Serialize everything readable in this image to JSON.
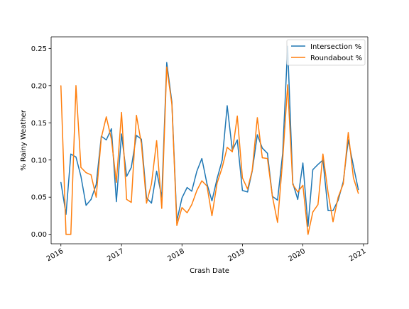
{
  "chart_data": {
    "type": "line",
    "title": "",
    "xlabel": "Crash Date",
    "ylabel": "% Rainy Weather",
    "x": [
      "2016-01",
      "2016-02",
      "2016-03",
      "2016-04",
      "2016-05",
      "2016-06",
      "2016-07",
      "2016-08",
      "2016-09",
      "2016-10",
      "2016-11",
      "2016-12",
      "2017-01",
      "2017-02",
      "2017-03",
      "2017-04",
      "2017-05",
      "2017-06",
      "2017-07",
      "2017-08",
      "2017-09",
      "2017-10",
      "2017-11",
      "2017-12",
      "2018-01",
      "2018-02",
      "2018-03",
      "2018-04",
      "2018-05",
      "2018-06",
      "2018-07",
      "2018-08",
      "2018-09",
      "2018-10",
      "2018-11",
      "2018-12",
      "2019-01",
      "2019-02",
      "2019-03",
      "2019-04",
      "2019-05",
      "2019-06",
      "2019-07",
      "2019-08",
      "2019-09",
      "2019-10",
      "2019-11",
      "2019-12",
      "2020-01",
      "2020-02",
      "2020-03",
      "2020-04",
      "2020-05",
      "2020-06",
      "2020-07",
      "2020-08",
      "2020-09",
      "2020-10",
      "2020-11",
      "2020-12"
    ],
    "series": [
      {
        "name": "Intersection %",
        "color": "#1f77b4",
        "values": [
          0.07,
          0.027,
          0.108,
          0.104,
          0.078,
          0.039,
          0.047,
          0.067,
          0.132,
          0.127,
          0.142,
          0.044,
          0.135,
          0.078,
          0.09,
          0.133,
          0.128,
          0.049,
          0.042,
          0.085,
          0.05,
          0.231,
          0.178,
          0.018,
          0.049,
          0.063,
          0.058,
          0.085,
          0.102,
          0.068,
          0.045,
          0.075,
          0.1,
          0.173,
          0.113,
          0.127,
          0.059,
          0.057,
          0.085,
          0.134,
          0.116,
          0.109,
          0.051,
          0.046,
          0.109,
          0.253,
          0.069,
          0.047,
          0.096,
          0.011,
          0.087,
          0.094,
          0.1,
          0.032,
          0.032,
          0.046,
          0.071,
          0.127,
          0.092,
          0.06
        ]
      },
      {
        "name": "Roundabout %",
        "color": "#ff7f0e",
        "values": [
          0.2,
          0.0,
          0.0,
          0.2,
          0.09,
          0.083,
          0.08,
          0.05,
          0.13,
          0.158,
          0.128,
          0.07,
          0.164,
          0.047,
          0.043,
          0.16,
          0.122,
          0.042,
          0.068,
          0.126,
          0.035,
          0.225,
          0.175,
          0.012,
          0.036,
          0.029,
          0.04,
          0.059,
          0.072,
          0.065,
          0.025,
          0.069,
          0.09,
          0.117,
          0.111,
          0.159,
          0.076,
          0.061,
          0.086,
          0.157,
          0.103,
          0.102,
          0.051,
          0.016,
          0.1,
          0.201,
          0.067,
          0.057,
          0.066,
          0.0,
          0.03,
          0.04,
          0.108,
          0.056,
          0.017,
          0.05,
          0.068,
          0.137,
          0.076,
          0.055
        ]
      }
    ],
    "xticks": [
      "2016",
      "2017",
      "2018",
      "2019",
      "2020",
      "2021"
    ],
    "yticks": [
      "0.00",
      "0.05",
      "0.10",
      "0.15",
      "0.20",
      "0.25"
    ],
    "ylim": [
      -0.0127,
      0.2656
    ],
    "xlim": [
      "2015-11-03",
      "2021-01-27"
    ],
    "grid": false,
    "legend_position": "upper right"
  }
}
